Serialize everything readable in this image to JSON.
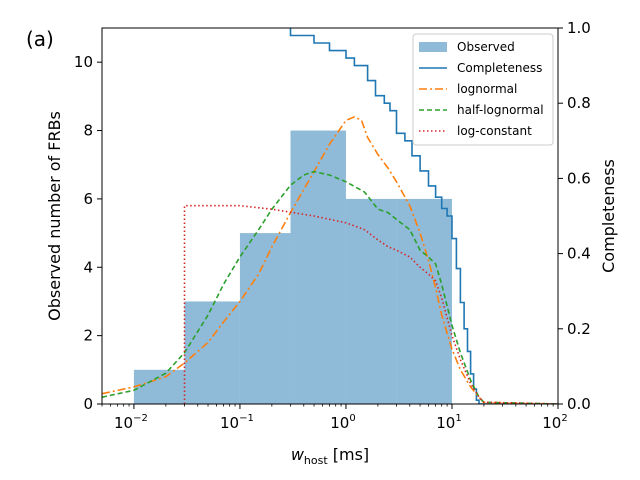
{
  "chart_data": {
    "type": "mixed",
    "panel_label": "(a)",
    "xlabel": "w",
    "xlabel_sub": "host",
    "xlabel_unit": " [ms]",
    "ylabel_left": "Observed number of FRBs",
    "ylabel_right": "Completeness",
    "xscale": "log",
    "xlim": [
      0.005,
      100
    ],
    "ylim_left": [
      0,
      11
    ],
    "ylim_right": [
      0,
      1.0
    ],
    "x_ticks": [
      {
        "value": 0.01,
        "base": "10",
        "exp": "−2"
      },
      {
        "value": 0.1,
        "base": "10",
        "exp": "−1"
      },
      {
        "value": 1,
        "base": "10",
        "exp": "0"
      },
      {
        "value": 10,
        "base": "10",
        "exp": "1"
      },
      {
        "value": 100,
        "base": "10",
        "exp": "2"
      }
    ],
    "y_ticks_left": [
      "0",
      "2",
      "4",
      "6",
      "8",
      "10"
    ],
    "y_ticks_right": [
      "0.0",
      "0.2",
      "0.4",
      "0.6",
      "0.8",
      "1.0"
    ],
    "legend": {
      "position": "top-right",
      "entries": [
        "Observed",
        "Completeness",
        "lognormal",
        "half-lognormal",
        "log-constant"
      ]
    },
    "histogram": {
      "name": "Observed",
      "color": "#8fbbd9",
      "bin_edges": [
        0.01,
        0.03,
        0.1,
        0.3,
        1,
        3,
        10
      ],
      "counts": [
        1,
        3,
        5,
        8,
        6,
        6
      ]
    },
    "series": [
      {
        "name": "Completeness",
        "axis": "right",
        "style": "step",
        "color": "#1f77b4",
        "points": [
          [
            0.3,
            1.0
          ],
          [
            0.3,
            0.98
          ],
          [
            0.5,
            0.98
          ],
          [
            0.5,
            0.96
          ],
          [
            0.7,
            0.96
          ],
          [
            0.7,
            0.94
          ],
          [
            1.0,
            0.94
          ],
          [
            1.0,
            0.92
          ],
          [
            1.2,
            0.92
          ],
          [
            1.2,
            0.9
          ],
          [
            1.6,
            0.9
          ],
          [
            1.6,
            0.86
          ],
          [
            1.9,
            0.86
          ],
          [
            1.9,
            0.82
          ],
          [
            2.3,
            0.82
          ],
          [
            2.3,
            0.8
          ],
          [
            2.6,
            0.8
          ],
          [
            2.6,
            0.78
          ],
          [
            3.0,
            0.78
          ],
          [
            3.0,
            0.72
          ],
          [
            3.6,
            0.72
          ],
          [
            3.6,
            0.7
          ],
          [
            4.2,
            0.7
          ],
          [
            4.2,
            0.66
          ],
          [
            5.0,
            0.66
          ],
          [
            5.0,
            0.62
          ],
          [
            6.0,
            0.62
          ],
          [
            6.0,
            0.58
          ],
          [
            7.0,
            0.58
          ],
          [
            7.0,
            0.55
          ],
          [
            8.0,
            0.55
          ],
          [
            8.0,
            0.52
          ],
          [
            9.0,
            0.52
          ],
          [
            9.0,
            0.5
          ],
          [
            10.0,
            0.5
          ],
          [
            10.0,
            0.44
          ],
          [
            11.0,
            0.44
          ],
          [
            11.0,
            0.36
          ],
          [
            12.0,
            0.36
          ],
          [
            12.0,
            0.27
          ],
          [
            13.0,
            0.27
          ],
          [
            13.0,
            0.2
          ],
          [
            14.0,
            0.2
          ],
          [
            14.0,
            0.14
          ],
          [
            15.0,
            0.14
          ],
          [
            15.0,
            0.08
          ],
          [
            16.0,
            0.08
          ],
          [
            16.0,
            0.04
          ],
          [
            17.0,
            0.04
          ],
          [
            17.0,
            0.01
          ],
          [
            18.0,
            0.01
          ],
          [
            18.0,
            0.0
          ],
          [
            100,
            0.0
          ]
        ]
      },
      {
        "name": "lognormal",
        "axis": "left",
        "style": "dashdot",
        "color": "#ff7f0e",
        "points": [
          [
            0.005,
            0.3
          ],
          [
            0.01,
            0.5
          ],
          [
            0.02,
            0.8
          ],
          [
            0.03,
            1.2
          ],
          [
            0.05,
            1.8
          ],
          [
            0.07,
            2.4
          ],
          [
            0.1,
            3.0
          ],
          [
            0.15,
            3.8
          ],
          [
            0.2,
            4.6
          ],
          [
            0.3,
            5.6
          ],
          [
            0.5,
            6.8
          ],
          [
            0.7,
            7.6
          ],
          [
            1.0,
            8.3
          ],
          [
            1.2,
            8.4
          ],
          [
            1.4,
            8.3
          ],
          [
            1.6,
            7.8
          ],
          [
            2.0,
            7.3
          ],
          [
            2.5,
            6.9
          ],
          [
            3.0,
            6.5
          ],
          [
            4.0,
            5.8
          ],
          [
            5.0,
            5.0
          ],
          [
            6.0,
            4.2
          ],
          [
            7.0,
            3.4
          ],
          [
            8.0,
            2.6
          ],
          [
            10.0,
            1.6
          ],
          [
            12.0,
            1.0
          ],
          [
            15.0,
            0.5
          ],
          [
            18.0,
            0.2
          ],
          [
            20.0,
            0.05
          ],
          [
            100,
            0.0
          ]
        ]
      },
      {
        "name": "half-lognormal",
        "axis": "left",
        "style": "dashed",
        "color": "#2ca02c",
        "points": [
          [
            0.005,
            0.2
          ],
          [
            0.01,
            0.4
          ],
          [
            0.02,
            0.9
          ],
          [
            0.03,
            1.5
          ],
          [
            0.05,
            2.6
          ],
          [
            0.07,
            3.5
          ],
          [
            0.1,
            4.3
          ],
          [
            0.15,
            5.1
          ],
          [
            0.2,
            5.7
          ],
          [
            0.3,
            6.4
          ],
          [
            0.4,
            6.7
          ],
          [
            0.5,
            6.8
          ],
          [
            0.7,
            6.7
          ],
          [
            1.0,
            6.5
          ],
          [
            1.5,
            6.2
          ],
          [
            2.0,
            5.7
          ],
          [
            2.5,
            5.6
          ],
          [
            3.0,
            5.4
          ],
          [
            4.0,
            5.1
          ],
          [
            5.0,
            4.5
          ],
          [
            6.0,
            4.3
          ],
          [
            7.0,
            4.1
          ],
          [
            8.0,
            3.5
          ],
          [
            10.0,
            2.3
          ],
          [
            12.0,
            1.5
          ],
          [
            15.0,
            0.7
          ],
          [
            18.0,
            0.2
          ],
          [
            20.0,
            0.05
          ],
          [
            100,
            0.0
          ]
        ]
      },
      {
        "name": "log-constant",
        "axis": "left",
        "style": "dotted",
        "color": "#d62728",
        "points": [
          [
            0.03,
            0.0
          ],
          [
            0.03,
            5.8
          ],
          [
            0.1,
            5.8
          ],
          [
            0.2,
            5.7
          ],
          [
            0.5,
            5.5
          ],
          [
            1.0,
            5.3
          ],
          [
            1.5,
            5.1
          ],
          [
            2.0,
            4.8
          ],
          [
            2.5,
            4.6
          ],
          [
            3.0,
            4.5
          ],
          [
            4.0,
            4.3
          ],
          [
            5.0,
            4.0
          ],
          [
            6.0,
            3.8
          ],
          [
            7.0,
            3.6
          ],
          [
            8.0,
            3.1
          ],
          [
            10.0,
            2.0
          ],
          [
            12.0,
            1.3
          ],
          [
            15.0,
            0.6
          ],
          [
            18.0,
            0.2
          ],
          [
            20.0,
            0.05
          ],
          [
            100,
            0.0
          ]
        ]
      }
    ]
  }
}
